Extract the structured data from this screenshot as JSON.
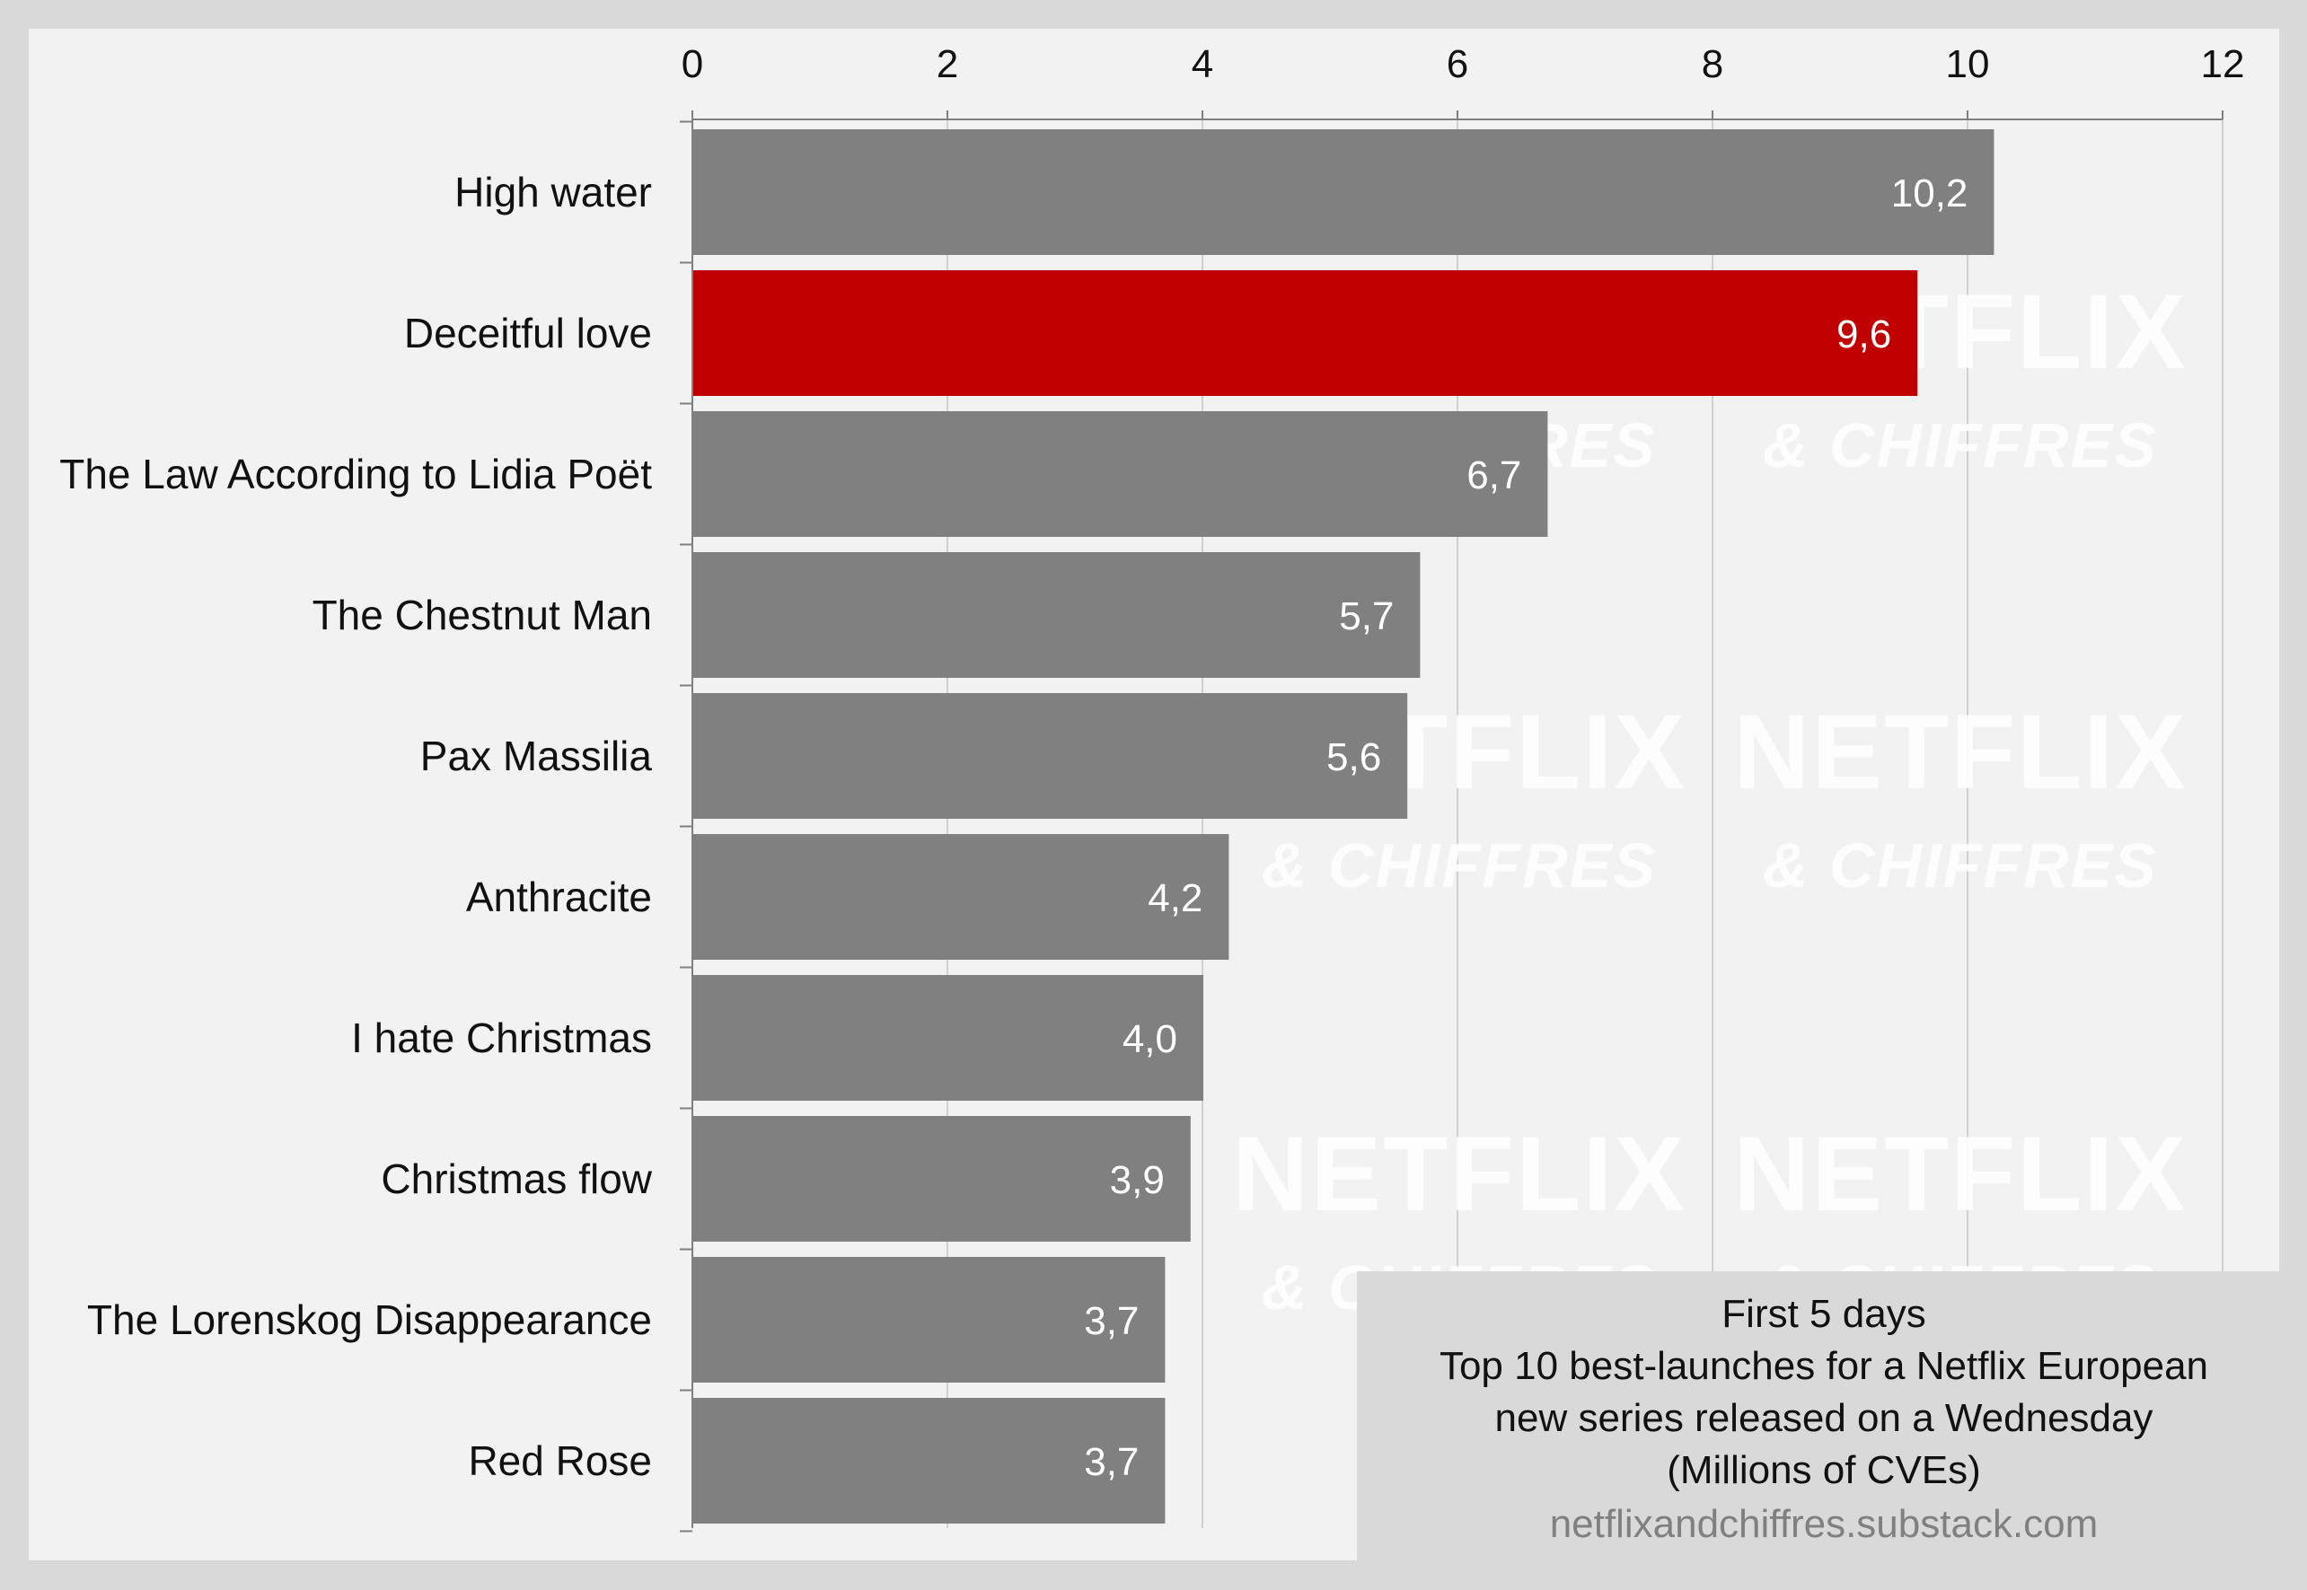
{
  "chart_data": {
    "type": "bar",
    "orientation": "horizontal",
    "categories": [
      "High water",
      "Deceitful love",
      "The Law According to Lidia Poët",
      "The Chestnut Man",
      "Pax Massilia",
      "Anthracite",
      "I hate Christmas",
      "Christmas flow",
      "The Lorenskog Disappearance",
      "Red Rose"
    ],
    "values": [
      10.2,
      9.6,
      6.7,
      5.7,
      5.6,
      4.2,
      4.0,
      3.9,
      3.7,
      3.7
    ],
    "value_labels": [
      "10,2",
      "9,6",
      "6,7",
      "5,7",
      "5,6",
      "4,2",
      "4,0",
      "3,9",
      "3,7",
      "3,7"
    ],
    "highlight_index": 1,
    "xlim": [
      0,
      12
    ],
    "xticks": [
      0,
      2,
      4,
      6,
      8,
      10,
      12
    ],
    "x_axis_position": "top",
    "grid": true,
    "colors": {
      "bar": "#808080",
      "highlight": "#c00000",
      "plot_background": "#f2f2f2",
      "page_background": "#d9d9d9",
      "gridline": "#d0d0d0",
      "axis": "#7f7f7f",
      "caption_background": "#d9d9d9",
      "source_text": "#808080"
    },
    "caption": {
      "lines": [
        "First 5 days",
        "Top 10 best-launches for a Netflix European",
        "new series released on a Wednesday",
        "(Millions of CVEs)"
      ],
      "source": "netflixandchiffres.substack.com"
    },
    "watermark": {
      "brand": "NETFLIX",
      "sub": "& CHIFFRES"
    }
  }
}
